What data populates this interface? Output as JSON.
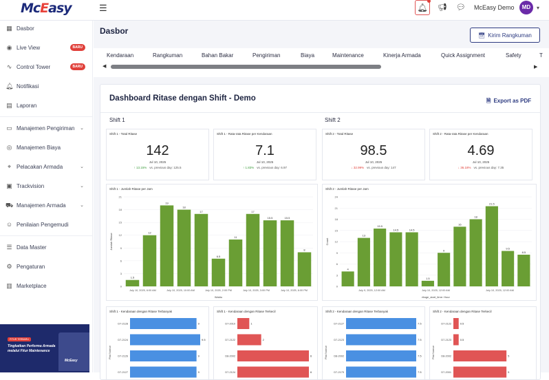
{
  "topbar": {
    "logo_prefix": "Mc",
    "logo_e": "E",
    "logo_suffix": "asy",
    "user_name": "McEasy Demo",
    "avatar_initials": "MD"
  },
  "sidebar": {
    "items": [
      {
        "label": "Dasbor",
        "icon": "dashboard-icon"
      },
      {
        "label": "Live View",
        "icon": "live-view-icon",
        "badge": "BARU"
      },
      {
        "label": "Control Tower",
        "icon": "control-tower-icon",
        "badge": "BARU"
      },
      {
        "label": "Notifikasi",
        "icon": "bell-icon"
      },
      {
        "label": "Laporan",
        "icon": "report-icon"
      },
      {
        "label": "Manajemen Pengiriman",
        "icon": "delivery-icon",
        "chevron": true
      },
      {
        "label": "Manajemen Biaya",
        "icon": "cost-icon"
      },
      {
        "label": "Pelacakan Armada",
        "icon": "tracking-icon",
        "chevron": true
      },
      {
        "label": "Trackvision",
        "icon": "camera-icon",
        "chevron": true
      },
      {
        "label": "Manajemen Armada",
        "icon": "fleet-icon",
        "chevron": true
      },
      {
        "label": "Penilaian Pengemudi",
        "icon": "driver-icon"
      },
      {
        "label": "Data Master",
        "icon": "database-icon"
      },
      {
        "label": "Pengaturan",
        "icon": "settings-icon"
      },
      {
        "label": "Marketplace",
        "icon": "store-icon"
      }
    ],
    "promo": {
      "tag": "FITUR TERBARU",
      "text": "Tingkatkan Performa Armada melalui Fitur Maintenance",
      "brand": "McEasy"
    }
  },
  "page": {
    "title": "Dasbor",
    "send_button": "Kirim Rangkuman",
    "tabs": [
      "Kendaraan",
      "Rangkuman",
      "Bahan Bakar",
      "Pengiriman",
      "Biaya",
      "Maintenance",
      "Kinerja Armada",
      "Quick Assignment",
      "Safety",
      "T"
    ]
  },
  "dashboard": {
    "title": "Dashboard Ritase dengan Shift - Demo",
    "export": "Export as PDF",
    "shift1": "Shift 1",
    "shift2": "Shift 2",
    "stats": [
      {
        "label": "Shift 1 - Total Ritase",
        "value": "142",
        "date": "Jul 10, 2025",
        "change": "13.15%",
        "dir": "up",
        "prev": "vs. previous day: 125.5"
      },
      {
        "label": "Shift 1 - Rata-rata Ritase per Kendaraan",
        "value": "7.1",
        "date": "Jul 10, 2025",
        "change": "1.83%",
        "dir": "up",
        "prev": "vs. previous day: 6.97"
      },
      {
        "label": "Shift 2 - Total Ritase",
        "value": "98.5",
        "date": "Jul 10, 2025",
        "change": "32.99%",
        "dir": "down",
        "prev": "vs. previous day: 147"
      },
      {
        "label": "Shift 2 - Rata-rata Ritase per Kendaraan",
        "value": "4.69",
        "date": "Jul 10, 2025",
        "change": "36.18%",
        "dir": "down",
        "prev": "vs. previous day: 7.35"
      }
    ],
    "hourly_titles": [
      "Shift 1 - Jumlah Ritase per Jam",
      "Shift 2 - Jumlah Ritase per Jam"
    ],
    "vehicle_titles": [
      "Shift 1 - Kendaraan dengan Ritase Terbanyak",
      "Shift 1 - Kendaraan dengan Ritase Terkecil",
      "Shift 2 - Kendaraan dengan Ritase Terbanyak",
      "Shift 2 - Kendaraan dengan Ritase Terkecil"
    ]
  },
  "chart_data": [
    {
      "type": "bar",
      "title": "Shift 1 - Jumlah Ritase per Jam",
      "ylabel": "Jumlah Ritase",
      "xlabel": "Waktu",
      "ylim": [
        0,
        21
      ],
      "color": "#6a9e34",
      "values": [
        1.5,
        12,
        19,
        18,
        17,
        6.5,
        11,
        17,
        15.5,
        15.5,
        8
      ],
      "xticks": [
        "July 10, 2025, 6:00 AM",
        "July 10, 2025, 10:00 AM",
        "July 10, 2025, 2:00 PM",
        "July 10, 2025, 3:00 PM",
        "July 10, 2025, 6:00 PM"
      ],
      "yticks": [
        0,
        3,
        6,
        9,
        12,
        15,
        18,
        21
      ]
    },
    {
      "type": "bar",
      "title": "Shift 2 - Jumlah Ritase per Jam",
      "ylabel": "Count",
      "xlabel": "ritage_start_time: Hour",
      "ylim": [
        0,
        24
      ],
      "color": "#6a9e34",
      "values": [
        4,
        13,
        15.5,
        14.5,
        14.5,
        1.5,
        9,
        16,
        18,
        21.5,
        9.5,
        8.5
      ],
      "xticks": [
        "July 9, 2025, 12:00 AM",
        "July 10, 2025, 12:00 AM",
        "July 10, 2025, 12:00 AM"
      ],
      "yticks": [
        0,
        3,
        6,
        9,
        12,
        15,
        18,
        21,
        24
      ]
    },
    {
      "type": "bar",
      "title": "Shift 1 - Kendaraan dengan Ritase Terbanyak",
      "ylabel": "Plat Nomor",
      "color": "#4a90e2",
      "categories": [
        "D7-2128",
        "D7-2124",
        "D7-2126",
        "D7-2127",
        "D7-2125"
      ],
      "values": [
        9,
        9.5,
        9,
        9,
        9
      ]
    },
    {
      "type": "bar",
      "title": "Shift 1 - Kendaraan dengan Ritase Terkecil",
      "ylabel": "",
      "color": "#e05555",
      "categories": [
        "D7-2010",
        "D7-2122",
        "D8-2002",
        "D7-2124",
        "D7-2124"
      ],
      "values": [
        1,
        2,
        6,
        6,
        6
      ]
    },
    {
      "type": "bar",
      "title": "Shift 2 - Kendaraan dengan Ritase Terbanyak",
      "ylabel": "Plat Nomor",
      "color": "#4a90e2",
      "categories": [
        "D7-2127",
        "D7-2123",
        "D8-2002",
        "D7-2179",
        "D7-2124"
      ],
      "values": [
        7.5,
        7.5,
        7.5,
        7.5,
        7.5
      ]
    },
    {
      "type": "bar",
      "title": "Shift 2 - Kendaraan dengan Ritase Terkecil",
      "ylabel": "Plat Nomor",
      "color": "#e05555",
      "categories": [
        "D7-2122",
        "D7-2123",
        "D8-2002",
        "D7-2001",
        "D8-2002"
      ],
      "values": [
        0.5,
        0.5,
        5,
        5,
        7
      ]
    }
  ]
}
